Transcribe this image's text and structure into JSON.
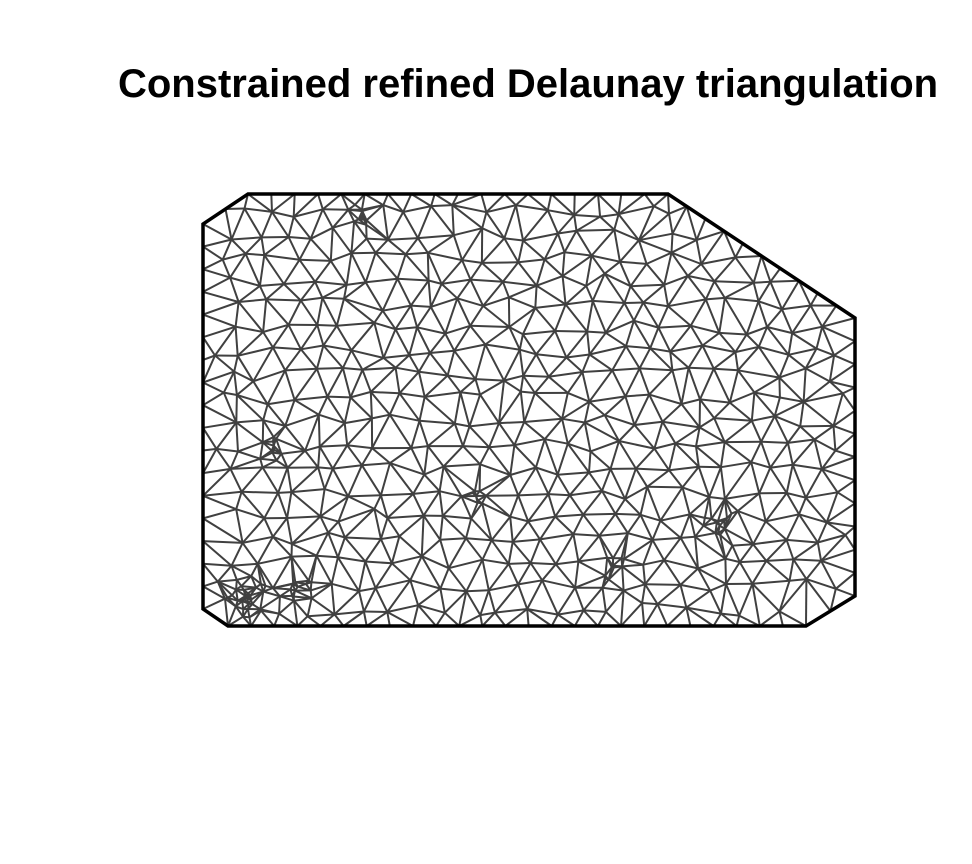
{
  "title": "Constrained refined Delaunay triangulation",
  "colors": {
    "background": "#ffffff",
    "boundary": "#000000",
    "mesh_edges": "#404040"
  }
}
